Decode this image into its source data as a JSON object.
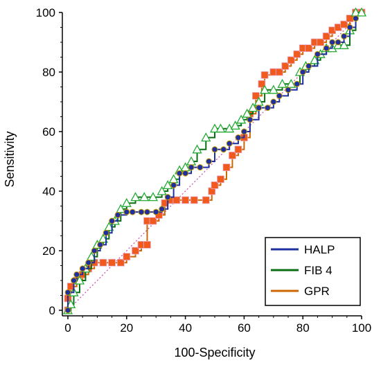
{
  "chart_data": {
    "type": "line",
    "title": "",
    "xlabel": "100-Specificity",
    "ylabel": "Sensitivity",
    "xlim": [
      0,
      100
    ],
    "ylim": [
      0,
      100
    ],
    "xticks": [
      "0",
      "20",
      "40",
      "60",
      "80",
      "100"
    ],
    "yticks": [
      "0",
      "20",
      "40",
      "60",
      "80",
      "100"
    ],
    "legend_position": "bottom-right",
    "diagonal": {
      "x": [
        0,
        100
      ],
      "y": [
        0,
        100
      ],
      "style": "dotted",
      "color": "#cc44aa"
    },
    "series": [
      {
        "name": "HALP",
        "line_color": "#1f2fa0",
        "marker": "circle",
        "marker_color": "#1f2fa0",
        "x": [
          0,
          0,
          2,
          3,
          5,
          7,
          9,
          11,
          13,
          15,
          17,
          20,
          22,
          25,
          27,
          30,
          32,
          34,
          36,
          38,
          40,
          42,
          45,
          48,
          50,
          53,
          55,
          58,
          60,
          62,
          65,
          68,
          70,
          72,
          75,
          78,
          80,
          82,
          85,
          88,
          90,
          92,
          94,
          96,
          98
        ],
        "y": [
          0,
          6,
          10,
          12,
          14,
          16,
          20,
          22,
          26,
          30,
          32,
          33,
          33,
          33,
          33,
          33,
          34,
          38,
          42,
          46,
          46,
          48,
          48,
          50,
          54,
          54,
          56,
          58,
          60,
          64,
          68,
          68,
          70,
          72,
          74,
          76,
          80,
          82,
          86,
          88,
          90,
          90,
          92,
          95,
          98
        ]
      },
      {
        "name": "FIB 4",
        "line_color": "#0a6e14",
        "marker": "triangle",
        "marker_color": "#22aa33",
        "x": [
          0,
          1,
          2,
          4,
          6,
          8,
          10,
          12,
          14,
          16,
          18,
          20,
          23,
          26,
          29,
          32,
          34,
          36,
          38,
          40,
          42,
          44,
          47,
          50,
          52,
          55,
          57,
          59,
          61,
          63,
          65,
          67,
          70,
          73,
          76,
          79,
          81,
          84,
          86,
          88,
          90,
          92,
          94,
          96,
          98,
          100
        ],
        "y": [
          0,
          2,
          6,
          10,
          14,
          18,
          22,
          24,
          28,
          30,
          34,
          36,
          38,
          38,
          38,
          40,
          42,
          44,
          47,
          48,
          50,
          54,
          58,
          61,
          61,
          61,
          62,
          64,
          66,
          68,
          70,
          74,
          74,
          76,
          76,
          80,
          82,
          84,
          86,
          88,
          88,
          89,
          89,
          94,
          100,
          100
        ]
      },
      {
        "name": "GPR",
        "line_color": "#cc6600",
        "marker": "square",
        "marker_color": "#f05a1e",
        "x": [
          0,
          0,
          1,
          3,
          5,
          7,
          9,
          12,
          15,
          18,
          20,
          23,
          25,
          27,
          27,
          29,
          31,
          33,
          35,
          37,
          40,
          43,
          47,
          49,
          50,
          52,
          54,
          56,
          58,
          60,
          62,
          64,
          66,
          67,
          70,
          72,
          74,
          76,
          78,
          80,
          82,
          84,
          86,
          88,
          90,
          92,
          94,
          96,
          98,
          100
        ],
        "y": [
          0,
          4,
          8,
          10,
          12,
          14,
          16,
          16,
          16,
          16,
          18,
          20,
          22,
          22,
          30,
          30,
          32,
          36,
          37,
          37,
          37,
          37,
          37,
          40,
          42,
          44,
          48,
          52,
          54,
          58,
          66,
          72,
          76,
          79,
          80,
          80,
          82,
          84,
          86,
          88,
          88,
          90,
          90,
          92,
          94,
          95,
          96,
          98,
          100,
          100
        ]
      }
    ]
  }
}
